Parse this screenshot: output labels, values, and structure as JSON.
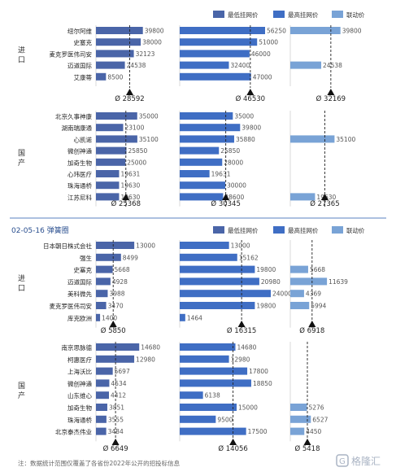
{
  "colors": {
    "min": "#4a65a8",
    "max": "#3f6ec4",
    "link": "#79a3d6",
    "divider": "#5a80c0",
    "panelBg": "#ffffff"
  },
  "legend": [
    "最低挂网价",
    "最高挂网价",
    "联动价"
  ],
  "footnote": "注：数据统计范围仅覆盖了各省份2022年公开的招投标信息",
  "logo": {
    "text": "格隆汇",
    "icon": "G"
  },
  "chart_data": [
    {
      "type": "bar",
      "title": "",
      "xmax": 60000,
      "groups": [
        {
          "name": "进\n口",
          "categories": [
            "纽尔阿维",
            "史塞克",
            "麦克罗医伟司安",
            "迈道国际",
            "艾康蒂"
          ],
          "min": [
            39800,
            38000,
            32123,
            24538,
            8500
          ],
          "max": [
            56250,
            51000,
            46000,
            32400,
            47000
          ],
          "link": [
            39800,
            null,
            null,
            24538,
            null
          ],
          "avg": [
            "Ø 28592",
            "Ø 46530",
            "Ø 32169"
          ],
          "avgValues": [
            28592,
            46530,
            32169
          ]
        },
        {
          "name": "国\n产",
          "categories": [
            "北京久事神康",
            "湖南瑞康通",
            "心凯诺",
            "微创神通",
            "加奇生物",
            "心玮医疗",
            "珠海通桥",
            "江苏尼科"
          ],
          "min": [
            35000,
            23100,
            35100,
            25850,
            25000,
            19631,
            19630,
            19630
          ],
          "max": [
            35000,
            39800,
            35880,
            25850,
            28000,
            19631,
            30000,
            28600
          ],
          "link": [
            null,
            null,
            35100,
            null,
            null,
            null,
            null,
            19630
          ],
          "avg": [
            "Ø 25368",
            "Ø 30345",
            "Ø 27365"
          ],
          "avgValues": [
            25368,
            30345,
            27365
          ]
        }
      ]
    },
    {
      "type": "bar",
      "title": "02-05-16 弹簧圈",
      "xmax": 24000,
      "groups": [
        {
          "name": "进\n口",
          "categories": [
            "日本朝日株式会社",
            "强生",
            "史塞克",
            "迈道国际",
            "美科微先",
            "麦克罗医伟司安",
            "库克欧洲"
          ],
          "min": [
            13000,
            8499,
            5668,
            4928,
            3988,
            3470,
            1400
          ],
          "max": [
            13000,
            15162,
            19800,
            20980,
            24000,
            19800,
            1464
          ],
          "link": [
            null,
            null,
            5668,
            11639,
            4369,
            5994,
            null
          ],
          "avg": [
            "Ø 5850",
            "Ø 16315",
            "Ø 6918"
          ],
          "avgValues": [
            5850,
            16315,
            6918
          ]
        },
        {
          "name": "国\n产",
          "categories": [
            "南京思脉德",
            "柯惠医疗",
            "上海沃比",
            "微创神通",
            "山东维心",
            "加奇生物",
            "珠海通桥",
            "北京泰杰伟业"
          ],
          "min": [
            14680,
            12980,
            5697,
            4534,
            4412,
            3851,
            3555,
            3484
          ],
          "max": [
            14680,
            12980,
            17800,
            18850,
            6138,
            15000,
            9500,
            17500
          ],
          "link": [
            null,
            null,
            null,
            null,
            null,
            5276,
            6527,
            4450
          ],
          "avg": [
            "Ø 6649",
            "Ø 14056",
            "Ø 5418"
          ],
          "avgValues": [
            6649,
            14056,
            5418
          ]
        }
      ]
    }
  ]
}
